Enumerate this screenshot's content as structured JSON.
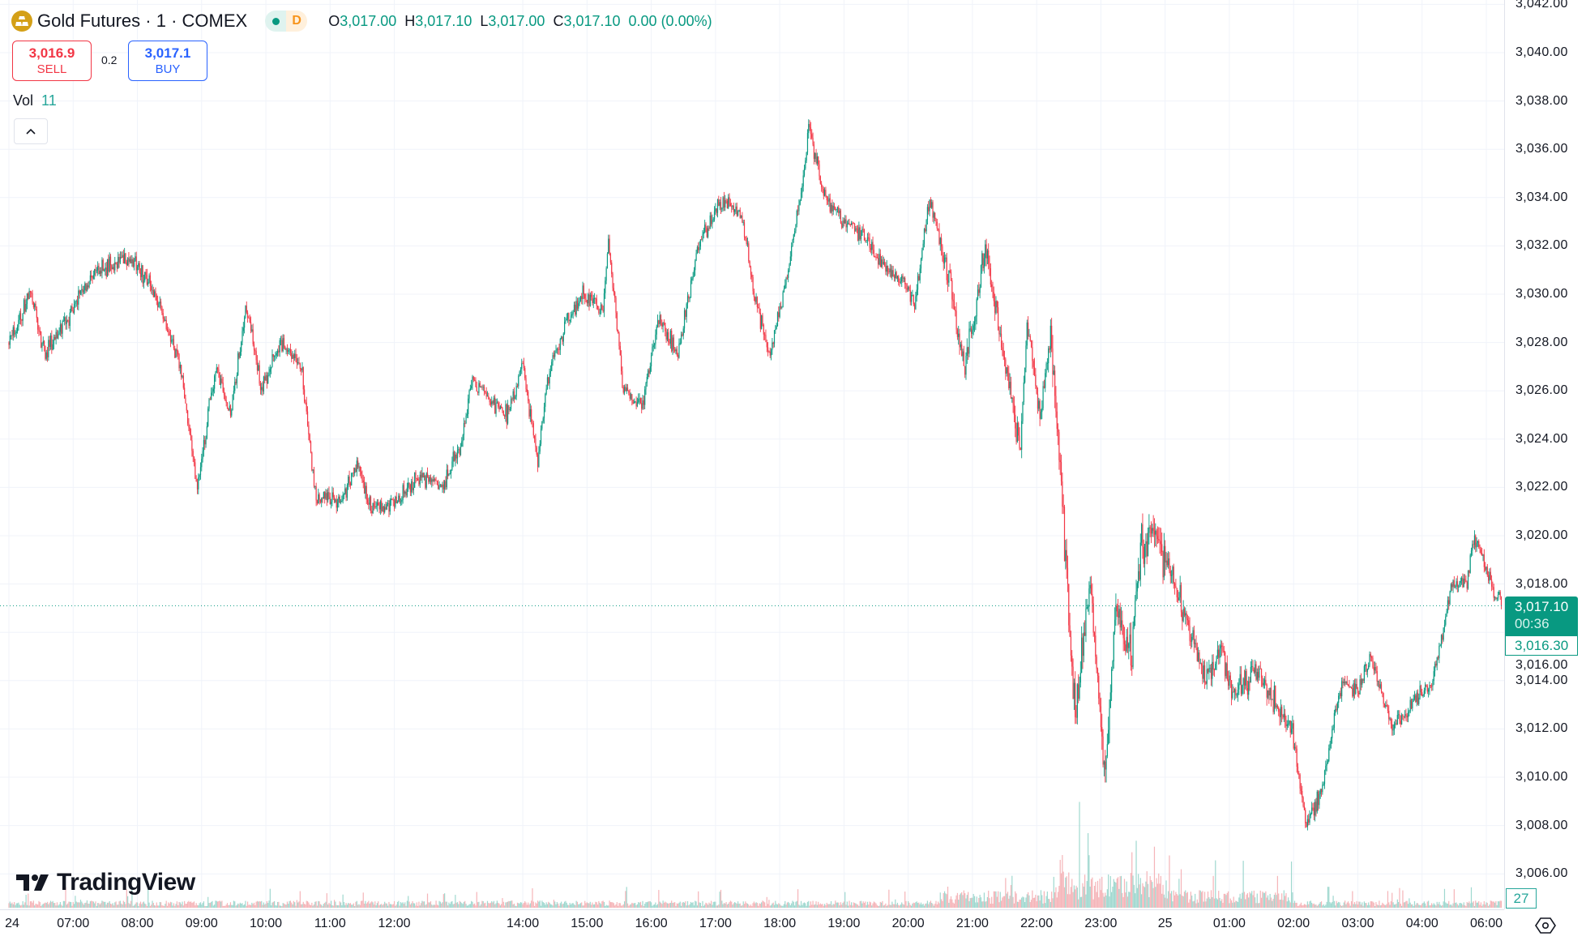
{
  "header": {
    "symbol_title": "Gold Futures · 1 · COMEX",
    "market_status_letter": "D",
    "ohlc": {
      "o_label": "O",
      "o": "3,017.00",
      "h_label": "H",
      "h": "3,017.10",
      "l_label": "L",
      "l": "3,017.00",
      "c_label": "C",
      "c": "3,017.10",
      "change": "0.00 (0.00%)"
    }
  },
  "trade": {
    "sell_price": "3,016.9",
    "sell_label": "SELL",
    "spread": "0.2",
    "buy_price": "3,017.1",
    "buy_label": "BUY"
  },
  "volume": {
    "label": "Vol",
    "value": "11",
    "axis_badge": "27"
  },
  "collapse_icon": "chevron-up-icon",
  "branding": "TradingView",
  "price_axis": {
    "labels": [
      "3,042.00",
      "3,040.00",
      "3,038.00",
      "3,036.00",
      "3,034.00",
      "3,032.00",
      "3,030.00",
      "3,028.00",
      "3,026.00",
      "3,024.00",
      "3,022.00",
      "3,020.00",
      "3,018.00",
      "3,016.00",
      "3,014.00",
      "3,012.00",
      "3,010.00",
      "3,008.00",
      "3,006.00"
    ],
    "current_price": "3,017.10",
    "countdown": "00:36",
    "bid_price": "3,016.30"
  },
  "time_axis": {
    "labels": [
      {
        "label": "24",
        "at": "06:00"
      },
      {
        "label": "07:00",
        "at": "07:00"
      },
      {
        "label": "08:00",
        "at": "08:00"
      },
      {
        "label": "09:00",
        "at": "09:00"
      },
      {
        "label": "10:00",
        "at": "10:00"
      },
      {
        "label": "11:00",
        "at": "11:00"
      },
      {
        "label": "12:00",
        "at": "12:00"
      },
      {
        "label": "14:00",
        "at": "14:00"
      },
      {
        "label": "15:00",
        "at": "15:00"
      },
      {
        "label": "16:00",
        "at": "16:00"
      },
      {
        "label": "17:00",
        "at": "17:00"
      },
      {
        "label": "18:00",
        "at": "18:00"
      },
      {
        "label": "19:00",
        "at": "19:00"
      },
      {
        "label": "20:00",
        "at": "20:00"
      },
      {
        "label": "21:00",
        "at": "21:00"
      },
      {
        "label": "22:00",
        "at": "22:00"
      },
      {
        "label": "23:00",
        "at": "23:00"
      },
      {
        "label": "25",
        "at": "00:00"
      },
      {
        "label": "01:00",
        "at": "01:00"
      },
      {
        "label": "02:00",
        "at": "02:00"
      },
      {
        "label": "03:00",
        "at": "03:00"
      },
      {
        "label": "04:00",
        "at": "04:00"
      },
      {
        "label": "06:00",
        "at": "06:00"
      }
    ]
  },
  "colors": {
    "up": "#089981",
    "down": "#f23645",
    "volume_up": "#9fd8cf",
    "volume_down": "#f5b4b8",
    "grid": "#f0f3fa"
  },
  "chart_data": {
    "type": "candlestick",
    "interval": "1 minute",
    "price_range": [
      3005,
      3042
    ],
    "approx_path": [
      [
        "06:00",
        3028
      ],
      [
        "06:20",
        3030
      ],
      [
        "06:34",
        3027.5
      ],
      [
        "07:21",
        3031
      ],
      [
        "07:54",
        3031.5
      ],
      [
        "08:12",
        3030.5
      ],
      [
        "08:40",
        3027
      ],
      [
        "08:56",
        3022
      ],
      [
        "09:13",
        3027
      ],
      [
        "09:27",
        3025
      ],
      [
        "09:42",
        3029.5
      ],
      [
        "09:56",
        3026
      ],
      [
        "10:14",
        3028
      ],
      [
        "10:33",
        3027
      ],
      [
        "10:47",
        3021.5
      ],
      [
        "11:11",
        3021.5
      ],
      [
        "11:25",
        3023
      ],
      [
        "11:39",
        3021
      ],
      [
        "12:02",
        3021.5
      ],
      [
        "12:26",
        3022.5
      ],
      [
        "12:45",
        3022
      ],
      [
        "13:03",
        3024
      ],
      [
        "13:13",
        3026.5
      ],
      [
        "13:32",
        3025.5
      ],
      [
        "13:46",
        3025
      ],
      [
        "14:00",
        3027
      ],
      [
        "14:14",
        3023
      ],
      [
        "14:23",
        3026.5
      ],
      [
        "14:42",
        3029
      ],
      [
        "14:56",
        3030
      ],
      [
        "15:15",
        3029.5
      ],
      [
        "15:20",
        3032
      ],
      [
        "15:34",
        3026
      ],
      [
        "15:52",
        3025.5
      ],
      [
        "16:07",
        3029
      ],
      [
        "16:25",
        3027.5
      ],
      [
        "16:44",
        3032
      ],
      [
        "17:08",
        3034
      ],
      [
        "17:26",
        3033
      ],
      [
        "17:36",
        3030
      ],
      [
        "17:50",
        3027.5
      ],
      [
        "18:04",
        3030
      ],
      [
        "18:23",
        3035
      ],
      [
        "18:27",
        3037
      ],
      [
        "18:41",
        3034
      ],
      [
        "19:00",
        3033
      ],
      [
        "19:19",
        3032.5
      ],
      [
        "19:38",
        3031
      ],
      [
        "19:57",
        3030.5
      ],
      [
        "20:06",
        3029.5
      ],
      [
        "20:20",
        3034
      ],
      [
        "20:34",
        3031.5
      ],
      [
        "20:53",
        3027
      ],
      [
        "21:12",
        3032
      ],
      [
        "21:21",
        3029.5
      ],
      [
        "21:35",
        3026
      ],
      [
        "21:45",
        3023.5
      ],
      [
        "21:51",
        3029
      ],
      [
        "22:03",
        3025
      ],
      [
        "22:13",
        3028.5
      ],
      [
        "22:22",
        3023
      ],
      [
        "22:31",
        3016
      ],
      [
        "22:36",
        3012.5
      ],
      [
        "22:50",
        3018
      ],
      [
        "23:04",
        3010
      ],
      [
        "23:14",
        3017
      ],
      [
        "23:28",
        3015
      ],
      [
        "23:37",
        3019.5
      ],
      [
        "23:51",
        3020
      ],
      [
        "00:05",
        3018.5
      ],
      [
        "00:24",
        3016
      ],
      [
        "00:38",
        3014
      ],
      [
        "00:52",
        3015.5
      ],
      [
        "01:02",
        3013.5
      ],
      [
        "01:25",
        3014.5
      ],
      [
        "01:44",
        3013
      ],
      [
        "01:58",
        3012
      ],
      [
        "02:12",
        3008
      ],
      [
        "02:26",
        3009.5
      ],
      [
        "02:45",
        3014
      ],
      [
        "02:59",
        3013.5
      ],
      [
        "03:13",
        3015
      ],
      [
        "03:32",
        3012
      ],
      [
        "03:51",
        3013
      ],
      [
        "04:10",
        3014
      ],
      [
        "04:28",
        3018
      ],
      [
        "04:42",
        3018
      ],
      [
        "04:48",
        3020
      ],
      [
        "06:05",
        3018
      ],
      [
        "06:14",
        3017.1
      ]
    ],
    "last": 3017.1
  }
}
